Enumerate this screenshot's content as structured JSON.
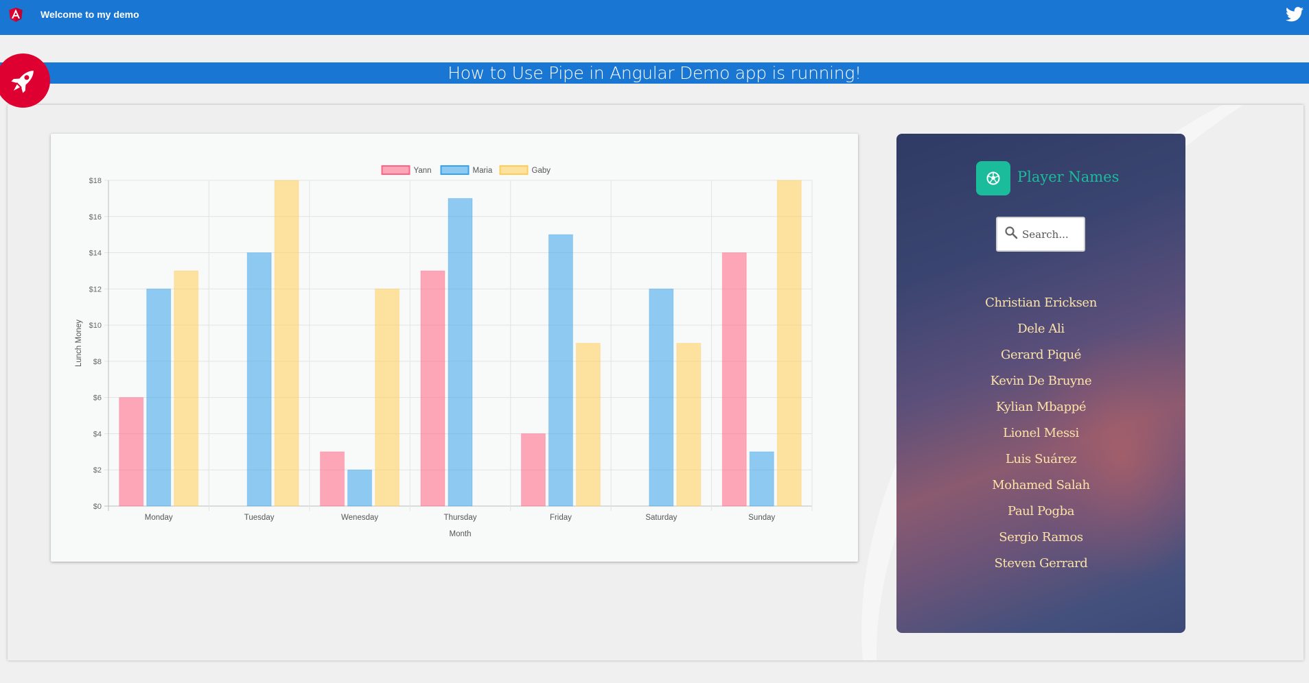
{
  "toolbar": {
    "title": "Welcome to my demo",
    "logo_icon": "angular-logo-icon",
    "social_icon": "twitter-icon"
  },
  "banner": {
    "text": "How to Use Pipe in Angular Demo app is running!",
    "icon": "rocket-icon"
  },
  "colors": {
    "toolbar": "#1976d2",
    "accent_red": "#dd0031",
    "teal": "#1abc9c",
    "player_text": "#fde3a7"
  },
  "chart_data": {
    "type": "bar",
    "title": "",
    "xlabel": "Month",
    "ylabel": "Lunch Money",
    "categories": [
      "Monday",
      "Tuesday",
      "Wenesday",
      "Thursday",
      "Friday",
      "Saturday",
      "Sunday"
    ],
    "series": [
      {
        "name": "Yann",
        "color": "#ff6384",
        "values": [
          6,
          0,
          3,
          13,
          4,
          0,
          14
        ]
      },
      {
        "name": "Maria",
        "color": "#36a2eb",
        "values": [
          12,
          14,
          2,
          17,
          15,
          12,
          3
        ]
      },
      {
        "name": "Gaby",
        "color": "#ffcd56",
        "values": [
          13,
          18,
          12,
          0,
          9,
          9,
          18
        ]
      }
    ],
    "ylim": [
      0,
      18
    ],
    "yticks": [
      "$0",
      "$2",
      "$4",
      "$6",
      "$8",
      "$10",
      "$12",
      "$14",
      "$16",
      "$18"
    ],
    "grid": true,
    "legend": "top"
  },
  "players": {
    "title": "Player Names",
    "header_icon": "soccer-ball-icon",
    "search_placeholder": "Search...",
    "search_value": "",
    "names": [
      "Christian Ericksen",
      "Dele Ali",
      "Gerard Piqué",
      "Kevin De Bruyne",
      "Kylian Mbappé",
      "Lionel Messi",
      "Luis Suárez",
      "Mohamed Salah",
      "Paul Pogba",
      "Sergio Ramos",
      "Steven Gerrard"
    ]
  }
}
